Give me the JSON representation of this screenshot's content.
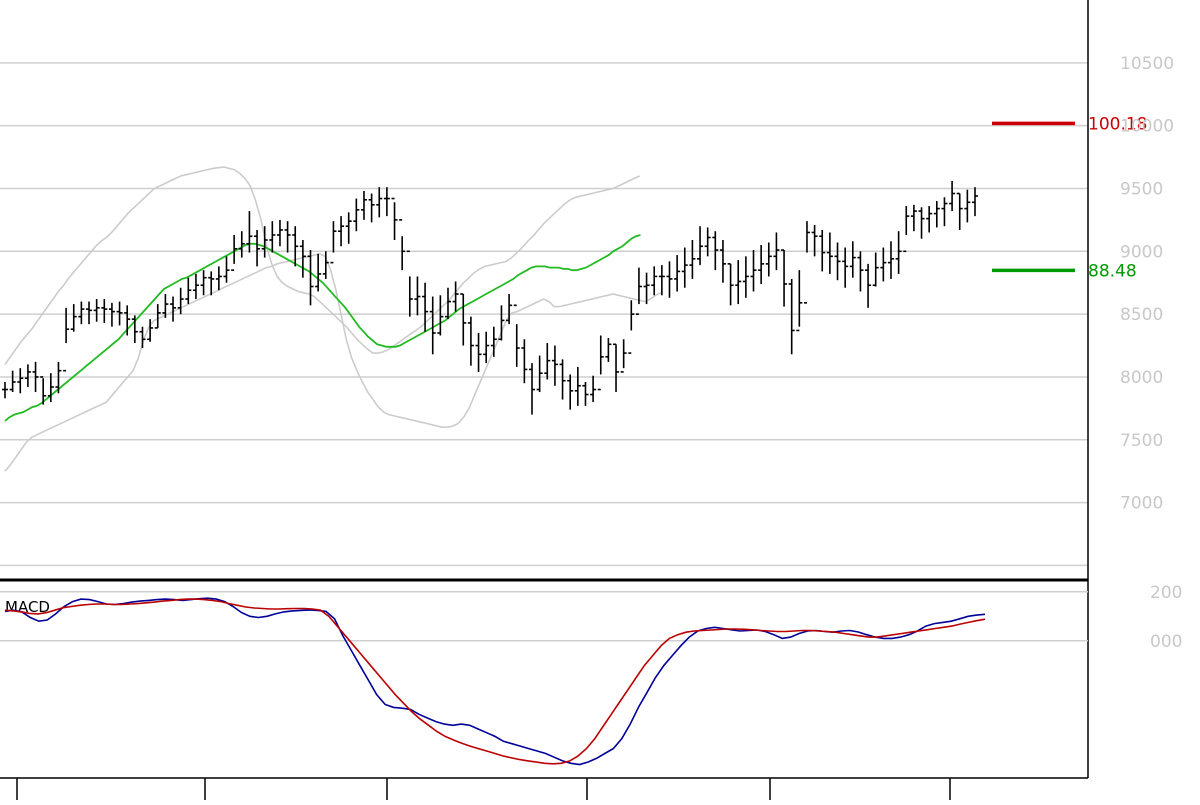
{
  "chart_data": [
    {
      "type": "ohlc",
      "title": "",
      "y_axis_ticks": [
        "7000",
        "7500",
        "8000",
        "8500",
        "9000",
        "9500",
        "10000",
        "10500"
      ],
      "ylim": [
        6400,
        11000
      ],
      "n_bars": 190,
      "grid": true,
      "markers": [
        {
          "label": "100.18",
          "value": 10018,
          "color": "#cc0000"
        },
        {
          "label": "88.48",
          "value": 8848,
          "color": "#009900"
        }
      ],
      "series": [
        {
          "kind": "ohlc",
          "color": "#000000",
          "close": [
            7900,
            7960,
            7990,
            8040,
            8000,
            7850,
            7920,
            8050,
            8380,
            8480,
            8540,
            8530,
            8550,
            8540,
            8520,
            8510,
            8460,
            8360,
            8300,
            8390,
            8510,
            8580,
            8550,
            8620,
            8690,
            8730,
            8790,
            8780,
            8800,
            8850,
            9020,
            9060,
            9120,
            9020,
            9090,
            9130,
            9170,
            9130,
            9040,
            8960,
            8720,
            8820,
            8910,
            9160,
            9200,
            9240,
            9330,
            9410,
            9370,
            9420,
            9420,
            9250,
            9000,
            8620,
            8640,
            8520,
            8350,
            8480,
            8600,
            8660,
            8430,
            8250,
            8180,
            8250,
            8300,
            8450,
            8570,
            8230,
            8060,
            7900,
            8030,
            8130,
            8100,
            7970,
            7890,
            7930,
            7860,
            7900,
            8160,
            8260,
            8040,
            8190,
            8500,
            8720,
            8730,
            8800,
            8800,
            8780,
            8840,
            8890,
            8940,
            9040,
            9110,
            9010,
            8900,
            8730,
            8760,
            8800,
            8850,
            8900,
            8960,
            9010,
            8740,
            8370,
            8590,
            9150,
            9120,
            8990,
            8960,
            8920,
            8880,
            8950,
            8850,
            8730,
            8870,
            8910,
            8940,
            9000,
            9280,
            9320,
            9260,
            9300,
            9340,
            9380,
            9460,
            9340,
            9390,
            9440
          ],
          "high": [
            7960,
            8050,
            8070,
            8100,
            8120,
            7990,
            8030,
            8120,
            8550,
            8580,
            8600,
            8600,
            8620,
            8620,
            8590,
            8600,
            8570,
            8490,
            8400,
            8460,
            8580,
            8660,
            8640,
            8710,
            8790,
            8820,
            8850,
            8840,
            8880,
            8960,
            9130,
            9160,
            9320,
            9170,
            9200,
            9240,
            9250,
            9240,
            9200,
            9090,
            9010,
            8980,
            9000,
            9240,
            9280,
            9310,
            9420,
            9480,
            9460,
            9510,
            9510,
            9390,
            9120,
            8800,
            8800,
            8750,
            8640,
            8650,
            8710,
            8760,
            8660,
            8480,
            8350,
            8360,
            8400,
            8570,
            8660,
            8420,
            8300,
            8110,
            8170,
            8270,
            8250,
            8140,
            8020,
            8080,
            7960,
            8010,
            8330,
            8310,
            8260,
            8300,
            8610,
            8870,
            8830,
            8880,
            8890,
            8920,
            8970,
            9030,
            9090,
            9200,
            9190,
            9160,
            9090,
            8900,
            8930,
            8960,
            9010,
            9050,
            9070,
            9150,
            9010,
            8780,
            8850,
            9240,
            9210,
            9170,
            9150,
            9070,
            9030,
            9080,
            9000,
            8900,
            8990,
            9030,
            9080,
            9160,
            9360,
            9370,
            9350,
            9360,
            9400,
            9430,
            9560,
            9460,
            9490,
            9510
          ],
          "low": [
            7830,
            7880,
            7870,
            7920,
            7880,
            7780,
            7800,
            7870,
            8270,
            8360,
            8420,
            8420,
            8440,
            8430,
            8400,
            8410,
            8330,
            8270,
            8230,
            8280,
            8390,
            8470,
            8440,
            8500,
            8580,
            8620,
            8650,
            8650,
            8690,
            8750,
            8900,
            8950,
            8990,
            8880,
            8950,
            8990,
            9040,
            8990,
            8880,
            8790,
            8570,
            8680,
            8780,
            8990,
            9040,
            9060,
            9160,
            9250,
            9230,
            9270,
            9280,
            9090,
            8850,
            8480,
            8490,
            8360,
            8180,
            8330,
            8460,
            8520,
            8250,
            8090,
            8040,
            8110,
            8160,
            8290,
            8420,
            8080,
            7950,
            7700,
            7880,
            7980,
            7930,
            7820,
            7740,
            7770,
            7770,
            7800,
            8020,
            8120,
            7880,
            8070,
            8370,
            8580,
            8580,
            8650,
            8650,
            8630,
            8680,
            8710,
            8780,
            8890,
            8960,
            8850,
            8750,
            8570,
            8580,
            8630,
            8680,
            8740,
            8800,
            8850,
            8560,
            8180,
            8400,
            8990,
            8960,
            8840,
            8820,
            8770,
            8710,
            8790,
            8680,
            8550,
            8720,
            8760,
            8780,
            8820,
            9130,
            9160,
            9100,
            9150,
            9190,
            9200,
            9320,
            9170,
            9230,
            9280
          ]
        },
        {
          "kind": "line",
          "role": "moving-average",
          "color": "#22bb22",
          "values": [
            7650,
            7680,
            7700,
            7710,
            7720,
            7740,
            7760,
            7770,
            7790,
            7820,
            7850,
            7880,
            7910,
            7940,
            7970,
            8000,
            8030,
            8060,
            8090,
            8120,
            8150,
            8180,
            8210,
            8240,
            8270,
            8300,
            8340,
            8380,
            8420,
            8460,
            8500,
            8540,
            8580,
            8620,
            8660,
            8700,
            8720,
            8740,
            8760,
            8780,
            8790,
            8810,
            8830,
            8850,
            8870,
            8890,
            8910,
            8930,
            8950,
            8970,
            8990,
            9010,
            9030,
            9050,
            9060,
            9060,
            9050,
            9040,
            9020,
            9000,
            8980,
            8960,
            8940,
            8920,
            8900,
            8880,
            8860,
            8840,
            8810,
            8780,
            8750,
            8710,
            8670,
            8630,
            8590,
            8550,
            8500,
            8450,
            8400,
            8360,
            8320,
            8290,
            8260,
            8250,
            8240,
            8240,
            8240,
            8250,
            8270,
            8290,
            8310,
            8330,
            8350,
            8370,
            8390,
            8410,
            8430,
            8450,
            8480,
            8510,
            8540,
            8560,
            8580,
            8600,
            8620,
            8640,
            8660,
            8680,
            8700,
            8720,
            8740,
            8760,
            8780,
            8810,
            8830,
            8850,
            8870,
            8880,
            8880,
            8880,
            8870,
            8870,
            8870,
            8860,
            8860,
            8850,
            8850,
            8860,
            8870,
            8890,
            8910,
            8930,
            8950,
            8970,
            9000,
            9020,
            9040,
            9070,
            9100,
            9120,
            9130
          ]
        },
        {
          "kind": "line",
          "role": "upper-band",
          "color": "#cccccc",
          "values": [
            8100,
            8160,
            8220,
            8280,
            8330,
            8380,
            8440,
            8500,
            8560,
            8620,
            8680,
            8730,
            8790,
            8840,
            8890,
            8940,
            8990,
            9040,
            9080,
            9110,
            9150,
            9200,
            9250,
            9300,
            9340,
            9380,
            9420,
            9460,
            9500,
            9520,
            9540,
            9560,
            9580,
            9600,
            9610,
            9620,
            9630,
            9640,
            9650,
            9660,
            9665,
            9670,
            9660,
            9650,
            9620,
            9580,
            9520,
            9400,
            9250,
            9050,
            8900,
            8800,
            8750,
            8720,
            8700,
            8680,
            8670,
            8660,
            8640,
            8600,
            8560,
            8520,
            8480,
            8440,
            8400,
            8350,
            8300,
            8260,
            8220,
            8190,
            8190,
            8200,
            8220,
            8250,
            8280,
            8310,
            8340,
            8370,
            8400,
            8440,
            8480,
            8520,
            8560,
            8600,
            8650,
            8700,
            8750,
            8790,
            8830,
            8860,
            8880,
            8890,
            8900,
            8910,
            8920,
            8950,
            8990,
            9030,
            9080,
            9120,
            9170,
            9220,
            9260,
            9300,
            9340,
            9380,
            9410,
            9430,
            9440,
            9450,
            9460,
            9470,
            9480,
            9490,
            9500,
            9520,
            9540,
            9560,
            9580,
            9600
          ]
        },
        {
          "kind": "line",
          "role": "lower-band",
          "color": "#cccccc",
          "values": [
            7250,
            7300,
            7360,
            7420,
            7480,
            7520,
            7540,
            7560,
            7580,
            7600,
            7620,
            7640,
            7660,
            7680,
            7700,
            7720,
            7740,
            7760,
            7780,
            7800,
            7850,
            7900,
            7950,
            8000,
            8050,
            8150,
            8300,
            8400,
            8450,
            8470,
            8490,
            8510,
            8530,
            8550,
            8570,
            8590,
            8610,
            8630,
            8650,
            8670,
            8690,
            8710,
            8730,
            8750,
            8770,
            8790,
            8810,
            8830,
            8850,
            8870,
            8880,
            8900,
            8910,
            8920,
            8930,
            8940,
            8950,
            8960,
            8970,
            8980,
            8960,
            8860,
            8700,
            8500,
            8300,
            8150,
            8050,
            7960,
            7880,
            7820,
            7760,
            7720,
            7700,
            7690,
            7680,
            7670,
            7660,
            7650,
            7640,
            7630,
            7620,
            7610,
            7600,
            7600,
            7610,
            7630,
            7680,
            7750,
            7850,
            7950,
            8050,
            8150,
            8250,
            8350,
            8450,
            8510,
            8520,
            8540,
            8560,
            8580,
            8600,
            8620,
            8600,
            8560,
            8560,
            8570,
            8580,
            8590,
            8600,
            8610,
            8620,
            8630,
            8640,
            8650,
            8660,
            8650,
            8640,
            8630,
            8620,
            8610,
            8600,
            8620,
            8650,
            8670
          ]
        }
      ]
    },
    {
      "type": "line",
      "title": "MACD",
      "y_axis_ticks": [
        "000",
        "200"
      ],
      "ylim": [
        -560,
        240
      ],
      "grid": true,
      "series": [
        {
          "color": "#000099",
          "values": [
            120,
            125,
            118,
            95,
            80,
            85,
            110,
            140,
            160,
            170,
            168,
            160,
            150,
            148,
            152,
            158,
            162,
            165,
            168,
            170,
            168,
            165,
            168,
            172,
            174,
            170,
            160,
            140,
            115,
            100,
            95,
            100,
            110,
            118,
            122,
            124,
            126,
            124,
            120,
            90,
            20,
            -40,
            -100,
            -160,
            -220,
            -260,
            -272,
            -275,
            -280,
            -300,
            -315,
            -330,
            -340,
            -345,
            -340,
            -345,
            -360,
            -375,
            -390,
            -410,
            -420,
            -430,
            -440,
            -450,
            -460,
            -475,
            -490,
            -500,
            -505,
            -495,
            -480,
            -460,
            -440,
            -400,
            -340,
            -270,
            -210,
            -150,
            -100,
            -60,
            -20,
            15,
            40,
            50,
            55,
            50,
            45,
            40,
            42,
            44,
            38,
            25,
            10,
            15,
            30,
            40,
            42,
            38,
            35,
            40,
            42,
            36,
            25,
            15,
            10,
            10,
            15,
            25,
            40,
            60,
            70,
            75,
            80,
            90,
            100,
            105,
            108
          ],
          "name": ""
        },
        {
          "color": "#bb0000",
          "values": [
            125,
            122,
            118,
            112,
            110,
            115,
            125,
            135,
            140,
            145,
            148,
            150,
            150,
            148,
            148,
            150,
            152,
            155,
            158,
            162,
            165,
            168,
            170,
            170,
            168,
            165,
            160,
            152,
            145,
            138,
            134,
            132,
            130,
            130,
            131,
            132,
            132,
            130,
            125,
            100,
            60,
            20,
            -20,
            -60,
            -100,
            -140,
            -180,
            -220,
            -255,
            -290,
            -320,
            -345,
            -370,
            -390,
            -405,
            -418,
            -430,
            -440,
            -450,
            -460,
            -470,
            -478,
            -485,
            -490,
            -495,
            -500,
            -502,
            -500,
            -490,
            -470,
            -440,
            -400,
            -350,
            -300,
            -250,
            -200,
            -150,
            -100,
            -60,
            -20,
            10,
            25,
            35,
            40,
            42,
            44,
            46,
            48,
            48,
            47,
            45,
            42,
            40,
            38,
            38,
            40,
            42,
            42,
            40,
            38,
            35,
            30,
            25,
            20,
            15,
            15,
            20,
            25,
            30,
            35,
            40,
            45,
            50,
            55,
            60,
            68,
            75,
            82,
            88
          ]
        }
      ]
    }
  ]
}
